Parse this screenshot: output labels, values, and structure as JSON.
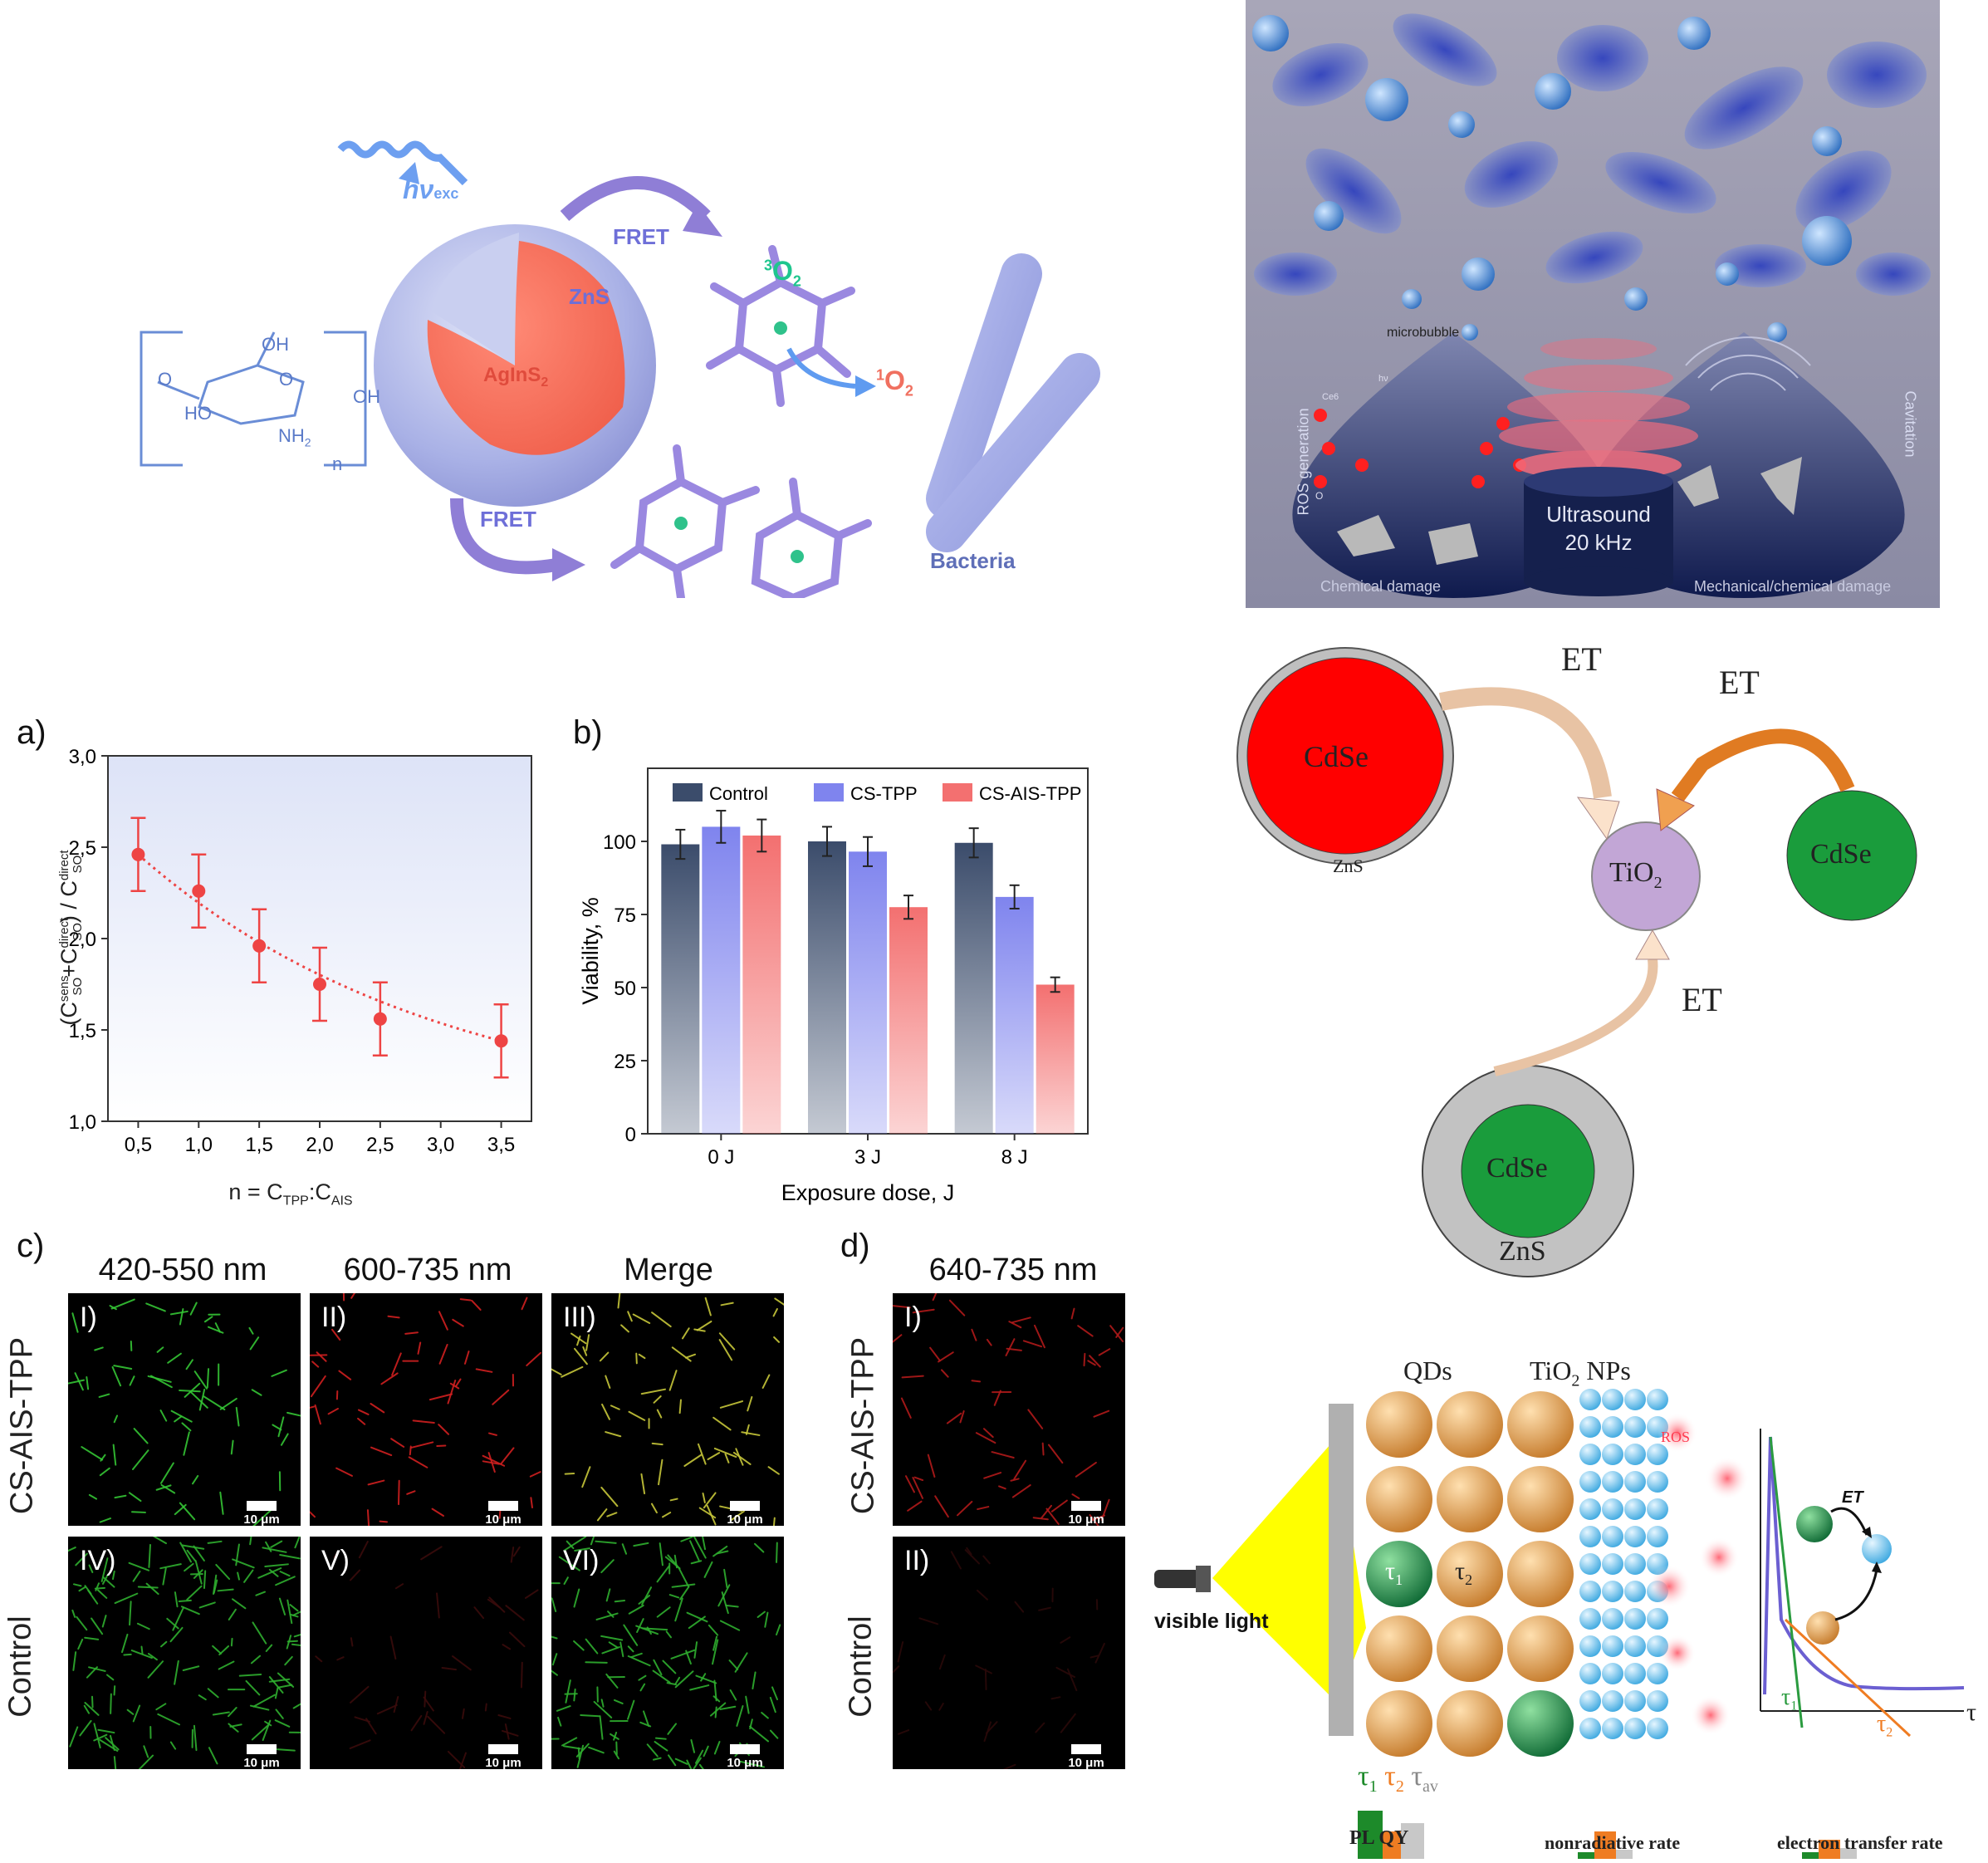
{
  "scheme1": {
    "hv": "hν",
    "hv_sub": "exc",
    "fret_top": "FRET",
    "fret_bottom": "FRET",
    "zns": "ZnS",
    "core": "AgInS",
    "core_sub": "2",
    "o2_triplet_sup": "3",
    "o2_triplet": "O",
    "o2_triplet_sub": "2",
    "o2_singlet_sup": "1",
    "o2_singlet": "O",
    "o2_singlet_sub": "2",
    "bacteria": "Bacteria",
    "chitosan": {
      "oh_top": "OH",
      "o_ring": "O",
      "o_left": "O",
      "ho": "HO",
      "nh2": "NH",
      "nh2_sub": "2",
      "oh_right": "OH",
      "n": "n"
    }
  },
  "scheme2": {
    "microbubble": "microbubble",
    "ros_generation": "ROS generation",
    "cavitation": "Cavitation",
    "ultrasound": "Ultrasound",
    "frequency": "20 kHz",
    "chemical_damage": "Chemical damage",
    "mechanical_damage": "Mechanical/chemical damage",
    "ce6": "Ce6",
    "hv": "hν",
    "o2": "O"
  },
  "scheme3": {
    "et1": "ET",
    "et2": "ET",
    "et3": "ET",
    "cdse_red": "CdSe",
    "zns_red": "ZnS",
    "tio2": "TiO",
    "tio2_sub": "2",
    "cdse_green": "CdSe",
    "cdse_bottom": "CdSe",
    "zns_bottom": "ZnS",
    "colors": {
      "red_core": "#ff0000",
      "green_core": "#1a9c3c",
      "tio2": "#c2a6d6",
      "shell": "#b8b8b8",
      "arrow1": "#e8c3a4",
      "arrow2": "#e07b22"
    }
  },
  "chart_a": {
    "label": "a)",
    "ylabel": "(C",
    "ylabel_sup1": "sens",
    "ylabel_sub1": "SO",
    "ylabel_mid": "+C",
    "ylabel_sup2": "direct",
    "ylabel_sub2": "SO",
    "ylabel_mid2": ") / C",
    "ylabel_sup3": "direct",
    "ylabel_sub3": "SO",
    "xlabel": "n = C",
    "xlabel_sub1": "TPP",
    "xlabel_mid": ":C",
    "xlabel_sub2": "AIS"
  },
  "chart_b": {
    "label": "b)",
    "legend": [
      "Control",
      "CS-TPP",
      "CS-AIS-TPP"
    ]
  },
  "chart_data": [
    {
      "type": "scatter",
      "x": [
        0.5,
        1.0,
        1.5,
        2.0,
        2.5,
        3.5
      ],
      "y": [
        2.46,
        2.26,
        1.96,
        1.75,
        1.56,
        1.44
      ],
      "yerr": [
        0.2,
        0.2,
        0.2,
        0.2,
        0.2,
        0.2
      ],
      "xlim": [
        0.25,
        3.75
      ],
      "ylim": [
        1.0,
        3.0
      ],
      "xticks": [
        "0,5",
        "1,0",
        "1,5",
        "2,0",
        "2,5",
        "3,0",
        "3,5"
      ],
      "yticks": [
        "1,0",
        "1,5",
        "2,0",
        "2,5",
        "3,0"
      ],
      "fit": "dotted exponential decay",
      "color": "#ee4444"
    },
    {
      "type": "bar",
      "categories": [
        "0 J",
        "3 J",
        "8 J"
      ],
      "series": [
        {
          "name": "Control",
          "values": [
            99,
            100,
            99.5
          ],
          "err": [
            5,
            5,
            5
          ]
        },
        {
          "name": "CS-TPP",
          "values": [
            105,
            96.5,
            81
          ],
          "err": [
            5.5,
            5,
            4
          ]
        },
        {
          "name": "CS-AIS-TPP",
          "values": [
            102,
            77.5,
            51
          ],
          "err": [
            5.5,
            4,
            2.5
          ]
        }
      ],
      "ylim": [
        0,
        125
      ],
      "yticks": [
        "0",
        "25",
        "50",
        "75",
        "100"
      ],
      "ylabel": "Viability, %",
      "xlabel": "Exposure dose, J",
      "colors": [
        "#3b4c6b",
        "#7f84ee",
        "#f37070"
      ]
    }
  ],
  "panel_c": {
    "label": "c)",
    "col1": "420-550 nm",
    "col2": "600-735 nm",
    "col3": "Merge",
    "row1": "CS-AIS-TPP",
    "row2": "Control",
    "romans": [
      "I)",
      "II)",
      "III)",
      "IV)",
      "V)",
      "VI)"
    ],
    "scale": "10 μm"
  },
  "panel_d": {
    "label": "d)",
    "col1": "640-735 nm",
    "row1": "CS-AIS-TPP",
    "row2": "Control",
    "romans": [
      "I)",
      "II)"
    ],
    "scale": "10 μm"
  },
  "scheme4": {
    "qds": "QDs",
    "tio2_nps": "TiO",
    "tio2_nps_sub": "2",
    "tio2_nps_tail": " NPs",
    "ros": "ROS",
    "visible_light": "visible light",
    "tau1": "τ",
    "tau1_sub": "1",
    "tau2": "τ",
    "tau2_sub": "2",
    "tau_av": "τ",
    "tau_av_sub": "av",
    "pl_qy": "PL QY",
    "nonradiative": "nonradiative rate",
    "electron_transfer": "electron transfer rate",
    "et": "ET",
    "tau_axis": "τ",
    "inset_tau1": "τ",
    "inset_tau1_sub": "1",
    "inset_tau2": "τ",
    "inset_tau2_sub": "2"
  }
}
